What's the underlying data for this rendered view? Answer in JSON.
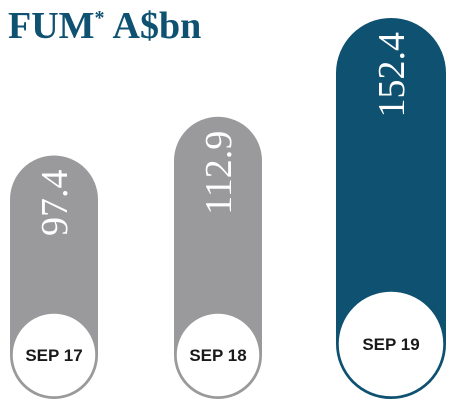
{
  "chart_data": {
    "type": "bar",
    "title": "FUM",
    "title_note_mark": "*",
    "title_unit": "A$bn",
    "categories": [
      "SEP 17",
      "SEP 18",
      "SEP 19"
    ],
    "values": [
      97.4,
      112.9,
      152.4
    ],
    "colors": [
      "#9a9a9c",
      "#9a9a9c",
      "#0f5171"
    ]
  }
}
